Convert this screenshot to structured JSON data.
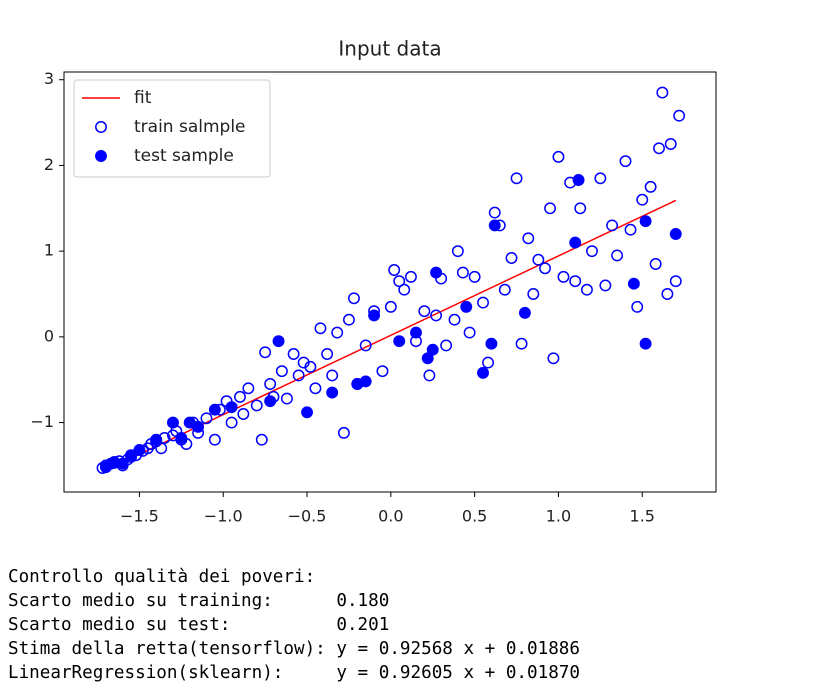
{
  "chart_data": {
    "type": "scatter",
    "title": "Input data",
    "xlim": [
      -1.95,
      1.94
    ],
    "ylim": [
      -1.81,
      3.09
    ],
    "xticks": [
      {
        "value": -1.5,
        "label": "−1.5"
      },
      {
        "value": -1.0,
        "label": "−1.0"
      },
      {
        "value": -0.5,
        "label": "−0.5"
      },
      {
        "value": 0.0,
        "label": "0.0"
      },
      0.5,
      {
        "value": 1.0,
        "label": "1.0"
      },
      1.5
    ],
    "yticks": [
      {
        "value": -1,
        "label": "−1"
      },
      0,
      1,
      2,
      3
    ],
    "legend": "upper left",
    "series": [
      {
        "name": "fit",
        "type": "line",
        "color": "#ff0000",
        "x": [
          -1.72,
          1.7
        ],
        "values": [
          -1.573,
          1.592
        ]
      },
      {
        "name": "train salmple",
        "type": "scatter",
        "marker": "open",
        "color": "#0000ff",
        "x": [
          -1.72,
          -1.7,
          -1.67,
          -1.65,
          -1.62,
          -1.6,
          -1.57,
          -1.55,
          -1.52,
          -1.48,
          -1.45,
          -1.43,
          -1.4,
          -1.37,
          -1.35,
          -1.3,
          -1.28,
          -1.25,
          -1.22,
          -1.18,
          -1.15,
          -1.1,
          -1.05,
          -1.02,
          -0.98,
          -0.95,
          -0.9,
          -0.88,
          -0.85,
          -0.8,
          -0.77,
          -0.75,
          -0.72,
          -0.7,
          -0.65,
          -0.62,
          -0.58,
          -0.55,
          -0.52,
          -0.48,
          -0.45,
          -0.42,
          -0.38,
          -0.35,
          -0.32,
          -0.28,
          -0.25,
          -0.22,
          -0.2,
          -0.15,
          -0.1,
          -0.05,
          0.0,
          0.02,
          0.05,
          0.08,
          0.12,
          0.15,
          0.2,
          0.23,
          0.27,
          0.3,
          0.33,
          0.38,
          0.4,
          0.43,
          0.47,
          0.5,
          0.55,
          0.58,
          0.62,
          0.65,
          0.68,
          0.72,
          0.75,
          0.78,
          0.82,
          0.85,
          0.88,
          0.92,
          0.95,
          0.97,
          1.0,
          1.03,
          1.07,
          1.1,
          1.13,
          1.17,
          1.2,
          1.25,
          1.28,
          1.32,
          1.35,
          1.4,
          1.43,
          1.47,
          1.5,
          1.55,
          1.58,
          1.6,
          1.62,
          1.65,
          1.67,
          1.7,
          1.72
        ],
        "values": [
          -1.53,
          -1.5,
          -1.48,
          -1.46,
          -1.45,
          -1.5,
          -1.43,
          -1.4,
          -1.38,
          -1.33,
          -1.3,
          -1.25,
          -1.22,
          -1.3,
          -1.18,
          -1.15,
          -1.1,
          -1.2,
          -1.25,
          -1.0,
          -1.12,
          -0.95,
          -1.2,
          -0.85,
          -0.75,
          -1.0,
          -0.7,
          -0.9,
          -0.6,
          -0.8,
          -1.2,
          -0.18,
          -0.55,
          -0.7,
          -0.4,
          -0.72,
          -0.2,
          -0.45,
          -0.3,
          -0.35,
          -0.6,
          0.1,
          -0.2,
          -0.45,
          0.05,
          -1.12,
          0.2,
          0.45,
          -0.55,
          -0.1,
          0.3,
          -0.4,
          0.35,
          0.78,
          0.65,
          0.55,
          0.7,
          -0.05,
          0.3,
          -0.45,
          0.25,
          0.68,
          -0.1,
          0.2,
          1.0,
          0.75,
          0.05,
          0.7,
          0.4,
          -0.3,
          1.45,
          1.3,
          0.55,
          0.92,
          1.85,
          -0.08,
          1.15,
          0.5,
          0.9,
          0.8,
          1.5,
          -0.25,
          2.1,
          0.7,
          1.8,
          0.65,
          1.5,
          0.55,
          1.0,
          1.85,
          0.6,
          1.3,
          0.95,
          2.05,
          1.25,
          0.35,
          1.6,
          1.75,
          0.85,
          2.2,
          2.85,
          0.5,
          2.25,
          0.65,
          2.58
        ]
      },
      {
        "name": "test sample",
        "type": "scatter",
        "marker": "filled",
        "color": "#0000ff",
        "x": [
          -1.7,
          -1.65,
          -1.6,
          -1.55,
          -1.5,
          -1.4,
          -1.3,
          -1.25,
          -1.2,
          -1.15,
          -1.05,
          -0.95,
          -0.72,
          -0.67,
          -0.5,
          -0.35,
          -0.2,
          -0.15,
          -0.1,
          0.05,
          0.15,
          0.22,
          0.25,
          0.27,
          0.45,
          0.55,
          0.6,
          0.62,
          0.8,
          1.1,
          1.12,
          1.45,
          1.52,
          1.7,
          1.52
        ],
        "values": [
          -1.52,
          -1.47,
          -1.48,
          -1.38,
          -1.32,
          -1.2,
          -1.0,
          -1.18,
          -1.0,
          -1.05,
          -0.85,
          -0.82,
          -0.75,
          -0.05,
          -0.88,
          -0.65,
          -0.55,
          -0.52,
          0.25,
          -0.05,
          0.05,
          -0.25,
          -0.15,
          0.75,
          0.35,
          -0.42,
          -0.08,
          1.3,
          0.28,
          1.1,
          1.83,
          0.62,
          -0.08,
          1.2,
          1.35
        ]
      }
    ]
  },
  "output": {
    "lines": [
      "Controllo qualità dei poveri:",
      "Scarto medio su training:      0.180",
      "Scarto medio su test:          0.201",
      "Stima della retta(tensorflow): y = 0.92568 x + 0.01886",
      "LinearRegression(sklearn):     y = 0.92605 x + 0.01870"
    ]
  }
}
